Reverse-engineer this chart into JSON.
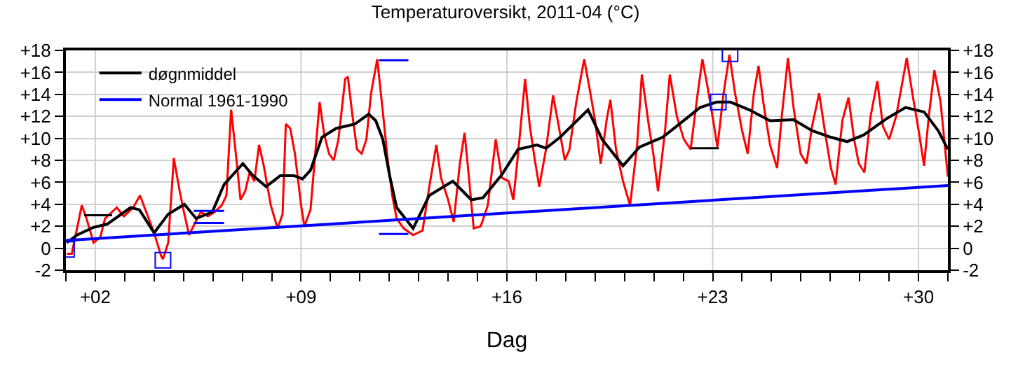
{
  "chart_data": {
    "type": "line",
    "title": "Temperaturoversikt, 2011-04 (°C)",
    "xlabel": "Dag",
    "xlim": [
      1,
      31
    ],
    "xticks": [
      {
        "value": 1,
        "label": null
      },
      {
        "value": 2,
        "label": "+02"
      },
      {
        "value": 3,
        "label": null
      },
      {
        "value": 4,
        "label": null
      },
      {
        "value": 5,
        "label": null
      },
      {
        "value": 6,
        "label": null
      },
      {
        "value": 7,
        "label": null
      },
      {
        "value": 8,
        "label": null
      },
      {
        "value": 9,
        "label": "+09"
      },
      {
        "value": 10,
        "label": null
      },
      {
        "value": 11,
        "label": null
      },
      {
        "value": 12,
        "label": null
      },
      {
        "value": 13,
        "label": null
      },
      {
        "value": 14,
        "label": null
      },
      {
        "value": 15,
        "label": null
      },
      {
        "value": 16,
        "label": "+16"
      },
      {
        "value": 17,
        "label": null
      },
      {
        "value": 18,
        "label": null
      },
      {
        "value": 19,
        "label": null
      },
      {
        "value": 20,
        "label": null
      },
      {
        "value": 21,
        "label": null
      },
      {
        "value": 22,
        "label": null
      },
      {
        "value": 23,
        "label": "+23"
      },
      {
        "value": 24,
        "label": null
      },
      {
        "value": 25,
        "label": null
      },
      {
        "value": 26,
        "label": null
      },
      {
        "value": 27,
        "label": null
      },
      {
        "value": 28,
        "label": null
      },
      {
        "value": 29,
        "label": null
      },
      {
        "value": 30,
        "label": "+30"
      },
      {
        "value": 31,
        "label": null
      }
    ],
    "ylim": [
      -2,
      18
    ],
    "yticks": [
      -2,
      0,
      {
        "value": 2,
        "label": "+2"
      },
      {
        "value": 4,
        "label": "+4"
      },
      {
        "value": 6,
        "label": "+6"
      },
      {
        "value": 8,
        "label": "+8"
      },
      {
        "value": 10,
        "label": "+10"
      },
      {
        "value": 12,
        "label": "+12"
      },
      {
        "value": 14,
        "label": "+14"
      },
      {
        "value": 16,
        "label": "+16"
      },
      {
        "value": 18,
        "label": "+18"
      }
    ],
    "y2lim": [
      -2,
      18
    ],
    "y2ticks": [
      -2,
      0,
      {
        "value": 2,
        "label": "+2"
      },
      {
        "value": 4,
        "label": "+4"
      },
      {
        "value": 6,
        "label": "+6"
      },
      {
        "value": 8,
        "label": "+8"
      },
      {
        "value": 10,
        "label": "+10"
      },
      {
        "value": 12,
        "label": "+12"
      },
      {
        "value": 14,
        "label": "+14"
      },
      {
        "value": 16,
        "label": "+16"
      },
      {
        "value": 18,
        "label": "+18"
      }
    ],
    "grid": true,
    "legend": "top left",
    "line_style": "solid",
    "series": [
      {
        "color": "#ff0000",
        "x": [
          1.03,
          1.2,
          1.54,
          1.7,
          1.94,
          2.17,
          2.33,
          2.73,
          2.97,
          3.29,
          3.52,
          3.76,
          4.0,
          4.24,
          4.3,
          4.48,
          4.67,
          4.87,
          5.03,
          5.19,
          5.43,
          5.59,
          5.83,
          6.06,
          6.3,
          6.46,
          6.62,
          6.78,
          6.94,
          7.1,
          7.25,
          7.41,
          7.57,
          7.73,
          7.97,
          8.2,
          8.37,
          8.48,
          8.63,
          8.79,
          9.0,
          9.11,
          9.32,
          9.48,
          9.63,
          9.79,
          9.95,
          10.11,
          10.27,
          10.5,
          10.59,
          10.75,
          10.9,
          11.06,
          11.22,
          11.38,
          11.59,
          11.78,
          11.94,
          12.1,
          12.25,
          12.49,
          12.81,
          13.13,
          13.36,
          13.6,
          13.76,
          14.0,
          14.19,
          14.4,
          14.56,
          14.71,
          14.87,
          15.11,
          15.35,
          15.62,
          15.83,
          16.06,
          16.22,
          16.38,
          16.62,
          16.78,
          16.94,
          17.1,
          17.33,
          17.57,
          17.73,
          17.97,
          18.13,
          18.36,
          18.63,
          18.84,
          19.0,
          19.19,
          19.4,
          19.52,
          19.71,
          19.95,
          20.19,
          20.43,
          20.59,
          20.83,
          20.98,
          21.14,
          21.38,
          21.54,
          21.78,
          22.02,
          22.25,
          22.49,
          22.65,
          22.81,
          22.97,
          23.16,
          23.37,
          23.57,
          23.76,
          24.0,
          24.19,
          24.4,
          24.56,
          24.72,
          24.95,
          25.19,
          25.35,
          25.56,
          25.75,
          25.99,
          26.19,
          26.38,
          26.62,
          26.86,
          27.02,
          27.18,
          27.41,
          27.62,
          27.81,
          27.97,
          28.16,
          28.37,
          28.6,
          28.79,
          29.0,
          29.24,
          29.6,
          29.79,
          30.03,
          30.19,
          30.35,
          30.54,
          30.75,
          31.0
        ],
        "values": [
          -0.5,
          -0.5,
          3.9,
          2.7,
          0.5,
          1.0,
          2.7,
          3.7,
          2.9,
          3.7,
          4.8,
          3.1,
          1.4,
          -0.7,
          -1.0,
          0.5,
          8.2,
          5.2,
          3.1,
          1.2,
          2.5,
          3.3,
          2.9,
          3.3,
          3.9,
          4.8,
          12.6,
          8.6,
          4.4,
          5.2,
          6.9,
          6.1,
          9.4,
          7.5,
          3.9,
          1.8,
          3.1,
          11.3,
          10.9,
          8.6,
          3.9,
          2.0,
          3.5,
          8.6,
          13.3,
          10.3,
          8.6,
          8.0,
          9.9,
          15.4,
          15.6,
          12.0,
          9.0,
          8.6,
          9.9,
          14.1,
          17.2,
          12.4,
          8.2,
          4.8,
          2.7,
          1.8,
          1.2,
          1.6,
          5.6,
          9.4,
          6.4,
          4.4,
          2.4,
          7.7,
          10.5,
          6.4,
          1.8,
          2.0,
          3.9,
          9.9,
          6.4,
          6.1,
          4.4,
          8.6,
          15.4,
          11.1,
          8.2,
          5.6,
          9.0,
          13.9,
          11.6,
          8.0,
          9.0,
          13.3,
          17.2,
          14.1,
          11.6,
          7.7,
          11.8,
          13.5,
          9.0,
          6.1,
          3.9,
          9.4,
          15.8,
          11.1,
          8.6,
          5.2,
          10.7,
          15.8,
          12.0,
          9.9,
          9.0,
          14.1,
          17.2,
          14.9,
          12.4,
          9.2,
          14.1,
          17.6,
          14.1,
          10.7,
          8.6,
          14.1,
          16.6,
          13.3,
          9.4,
          7.3,
          12.0,
          17.3,
          12.8,
          8.6,
          7.7,
          11.1,
          14.1,
          9.9,
          7.3,
          5.8,
          11.6,
          13.7,
          9.9,
          7.7,
          6.9,
          12.0,
          15.2,
          11.1,
          9.9,
          12.0,
          17.3,
          14.1,
          10.3,
          7.5,
          12.0,
          16.2,
          13.3,
          6.5
        ]
      },
      {
        "name": "døgnmiddel",
        "color": "#000000",
        "x": [
          1.03,
          1.38,
          1.94,
          2.41,
          3.2,
          3.5,
          4.0,
          4.48,
          5.03,
          5.43,
          5.98,
          6.38,
          7.02,
          7.33,
          7.81,
          8.29,
          8.76,
          9.05,
          9.32,
          9.71,
          10.19,
          10.83,
          11.3,
          11.54,
          11.78,
          12.02,
          12.25,
          12.81,
          13.36,
          14.16,
          14.79,
          15.19,
          15.83,
          16.38,
          17.02,
          17.33,
          17.81,
          18.76,
          19.24,
          19.95,
          20.51,
          21.3,
          22.1,
          22.57,
          23.13,
          23.6,
          24.24,
          24.95,
          25.75,
          26.38,
          27.02,
          27.57,
          28.13,
          28.92,
          29.56,
          30.19,
          30.67,
          31.0
        ],
        "values": [
          0.5,
          1.2,
          1.9,
          2.2,
          3.7,
          3.5,
          1.4,
          3.1,
          4.0,
          2.7,
          3.3,
          5.8,
          7.7,
          6.7,
          5.6,
          6.6,
          6.6,
          6.3,
          7.1,
          10.1,
          10.9,
          11.3,
          12.2,
          11.6,
          9.9,
          6.5,
          3.7,
          1.8,
          4.8,
          6.1,
          4.4,
          4.6,
          6.7,
          9.0,
          9.4,
          9.1,
          10.1,
          12.6,
          9.9,
          7.5,
          9.2,
          10.1,
          11.8,
          12.8,
          13.3,
          13.3,
          12.6,
          11.6,
          11.7,
          10.7,
          10.1,
          9.7,
          10.3,
          11.8,
          12.8,
          12.4,
          10.7,
          9.0
        ]
      },
      {
        "name": "Normal 1961-1990",
        "color": "#0000ff",
        "x": [
          1,
          31
        ],
        "values": [
          0.7,
          5.7
        ]
      },
      {
        "color": "#000000",
        "x": [
          1.62,
          2.57
        ],
        "values": [
          3.0,
          3.0
        ]
      },
      {
        "color": "#000000",
        "x": [
          22.25,
          23.21
        ],
        "values": [
          9.1,
          9.1
        ]
      },
      {
        "color": "#0000ff",
        "x": [
          5.35,
          6.38
        ],
        "values": [
          3.4,
          3.4
        ]
      },
      {
        "color": "#0000ff",
        "x": [
          5.35,
          6.38
        ],
        "values": [
          2.3,
          2.3
        ]
      },
      {
        "color": "#0000ff",
        "x": [
          11.65,
          12.65
        ],
        "values": [
          17.1,
          17.1
        ]
      },
      {
        "color": "#0000ff",
        "x": [
          11.65,
          12.65
        ],
        "values": [
          1.3,
          1.3
        ]
      },
      {
        "type": "scatter",
        "marker": "square",
        "color": "#0000ff",
        "x": [
          1.02,
          4.3,
          23.19,
          23.59
        ],
        "values": [
          -0.1,
          -1.1,
          13.3,
          17.7
        ]
      }
    ]
  }
}
